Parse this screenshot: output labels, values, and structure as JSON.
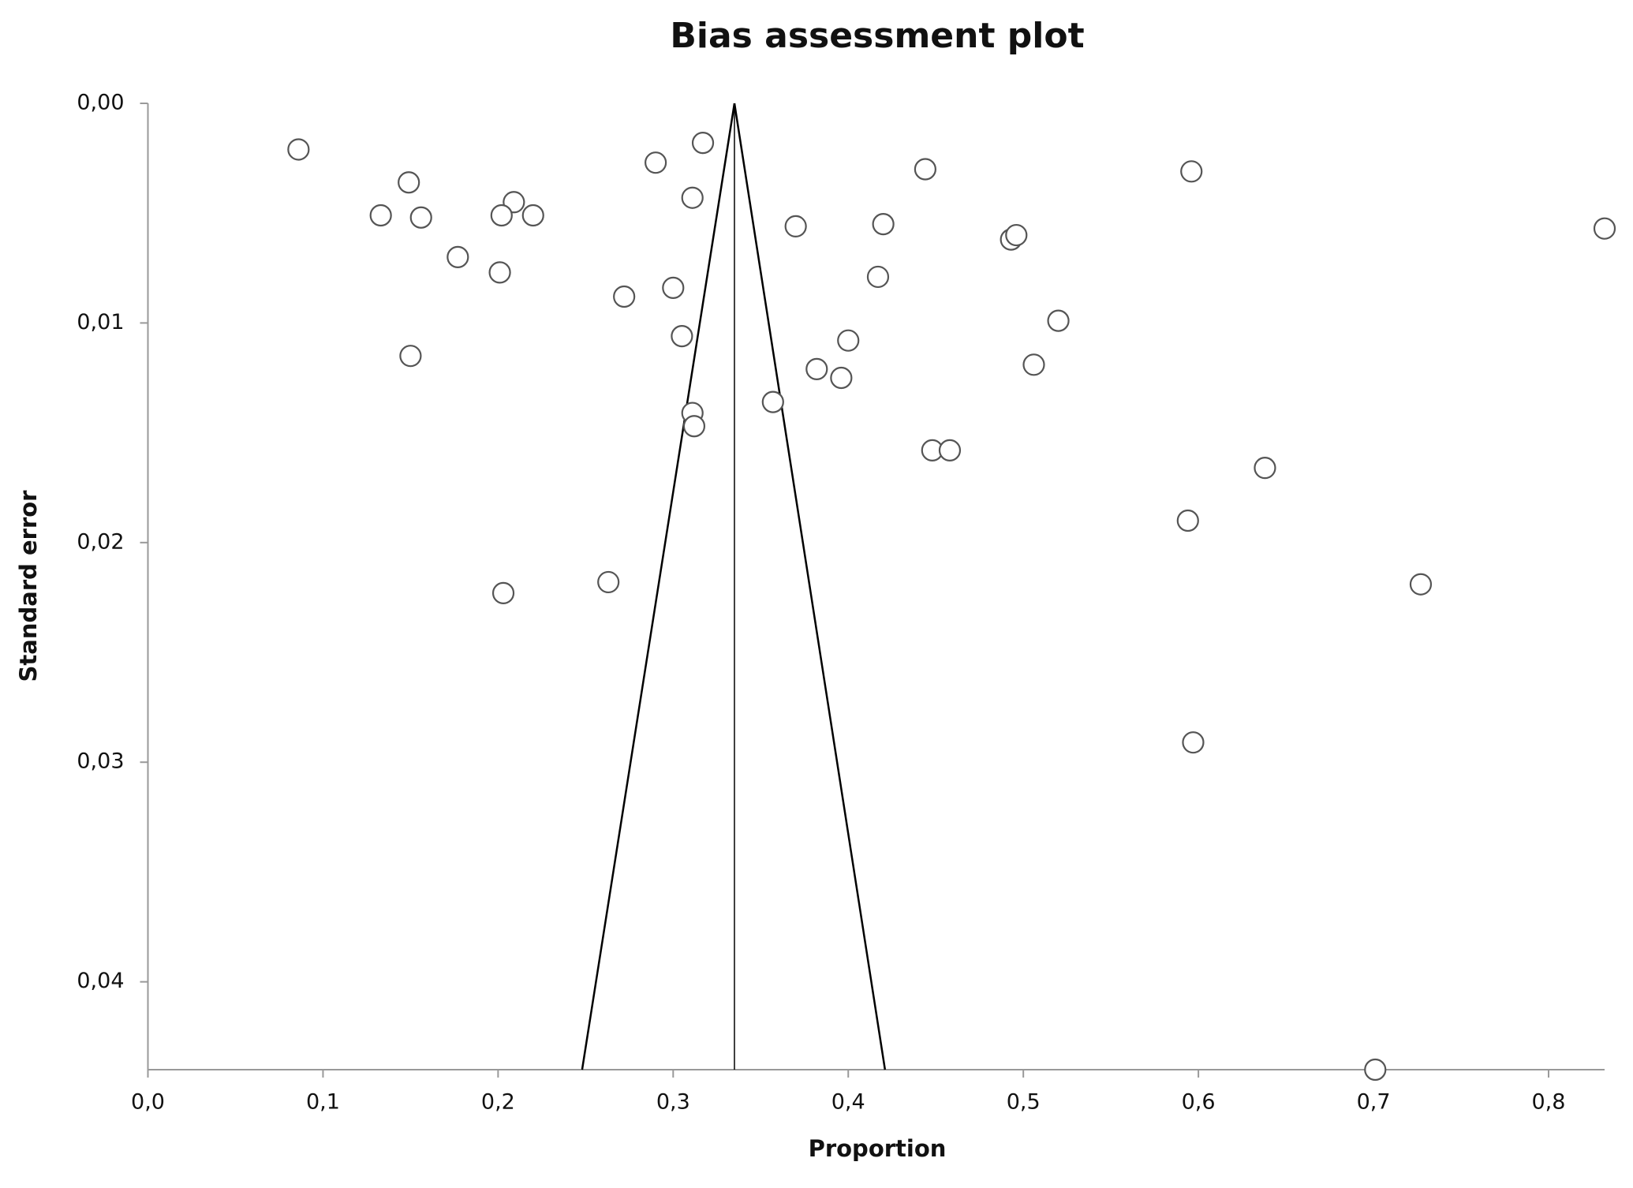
{
  "chart_data": {
    "type": "scatter",
    "title": "Bias assessment plot",
    "x_label": "Proportion",
    "y_label": "Standard error",
    "x": [
      0.086,
      0.149,
      0.133,
      0.156,
      0.177,
      0.209,
      0.202,
      0.22,
      0.201,
      0.15,
      0.29,
      0.317,
      0.311,
      0.3,
      0.272,
      0.305,
      0.311,
      0.312,
      0.263,
      0.203,
      0.357,
      0.37,
      0.382,
      0.396,
      0.4,
      0.417,
      0.42,
      0.444,
      0.448,
      0.458,
      0.493,
      0.496,
      0.52,
      0.506,
      0.596,
      0.638,
      0.594,
      0.597,
      0.727,
      0.701,
      0.832
    ],
    "values": [
      0.0021,
      0.0036,
      0.0051,
      0.0052,
      0.007,
      0.0045,
      0.0051,
      0.0051,
      0.0077,
      0.0115,
      0.0027,
      0.0018,
      0.0043,
      0.0084,
      0.0088,
      0.0106,
      0.0141,
      0.0147,
      0.0218,
      0.0223,
      0.0136,
      0.0056,
      0.0121,
      0.0125,
      0.0108,
      0.0079,
      0.0055,
      0.003,
      0.0158,
      0.0158,
      0.0062,
      0.006,
      0.0099,
      0.0119,
      0.0031,
      0.0166,
      0.019,
      0.0291,
      0.0219,
      0.044,
      0.0057
    ],
    "funnel": {
      "center": 0.335,
      "left_bottom": 0.248,
      "right_bottom": 0.421
    },
    "xlim": [
      0,
      0.832
    ],
    "ylim": [
      0,
      0.044
    ],
    "y_inverted": true,
    "xticks": [
      {
        "value": 0,
        "label": "0,0"
      },
      {
        "value": 0.1,
        "label": "0,1"
      },
      {
        "value": 0.2,
        "label": "0,2"
      },
      {
        "value": 0.3,
        "label": "0,3"
      },
      {
        "value": 0.4,
        "label": "0,4"
      },
      {
        "value": 0.5,
        "label": "0,5"
      },
      {
        "value": 0.6,
        "label": "0,6"
      },
      {
        "value": 0.7,
        "label": "0,7"
      },
      {
        "value": 0.8,
        "label": "0,8"
      }
    ],
    "yticks": [
      {
        "value": 0,
        "label": "0,00"
      },
      {
        "value": 0.01,
        "label": "0,01"
      },
      {
        "value": 0.02,
        "label": "0,02"
      },
      {
        "value": 0.03,
        "label": "0,03"
      },
      {
        "value": 0.04,
        "label": "0,04"
      }
    ],
    "marker_color": "#555555",
    "axis_color": "#999999"
  }
}
